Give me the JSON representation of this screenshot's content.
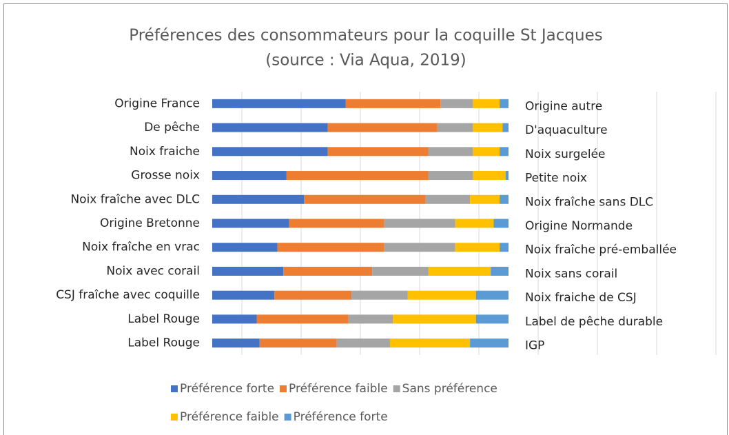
{
  "chart_data": {
    "type": "stacked_bar_horizontal",
    "title": "Préférences des consommateurs pour la coquille St Jacques",
    "subtitle": "(source : Via Aqua, 2019)",
    "categories": [
      "Origine France",
      "De pêche",
      "Noix fraiche",
      "Grosse noix",
      "Noix fraîche avec DLC",
      "Origine Bretonne",
      "Noix fraîche en vrac",
      "Noix avec corail",
      "CSJ fraîche avec coquille",
      "Label Rouge",
      "Label Rouge"
    ],
    "categories_right": [
      "Origine autre",
      "D'aquaculture",
      "Noix surgelée",
      "Petite noix",
      "Noix fraîche sans DLC",
      "Origine Normande",
      "Noix fraîche pré-emballée",
      "Noix sans corail",
      "Noix fraiche de CSJ",
      "Label de pêche durable",
      "IGP"
    ],
    "series": [
      {
        "name": "Préférence forte",
        "color": "#4472c4",
        "values": [
          45,
          39,
          39,
          25,
          31,
          26,
          22,
          24,
          21,
          15,
          16
        ]
      },
      {
        "name": "Préférence faible",
        "color": "#ed7d31",
        "values": [
          32,
          37,
          34,
          48,
          41,
          32,
          36,
          30,
          26,
          31,
          26
        ]
      },
      {
        "name": "Sans préférence",
        "color": "#a5a5a5",
        "values": [
          11,
          12,
          15,
          15,
          15,
          24,
          24,
          19,
          19,
          15,
          18
        ]
      },
      {
        "name": "Préférence faible",
        "color": "#ffc000",
        "values": [
          9,
          10,
          9,
          11,
          10,
          13,
          15,
          21,
          23,
          28,
          27
        ]
      },
      {
        "name": "Préférence forte",
        "color": "#5b9bd5",
        "values": [
          3,
          2,
          3,
          1,
          3,
          5,
          3,
          6,
          11,
          11,
          13
        ]
      }
    ],
    "xlim": [
      0,
      170
    ],
    "xticks": [
      10,
      30,
      50,
      70,
      90,
      110,
      130,
      150,
      170
    ],
    "grid": true
  }
}
